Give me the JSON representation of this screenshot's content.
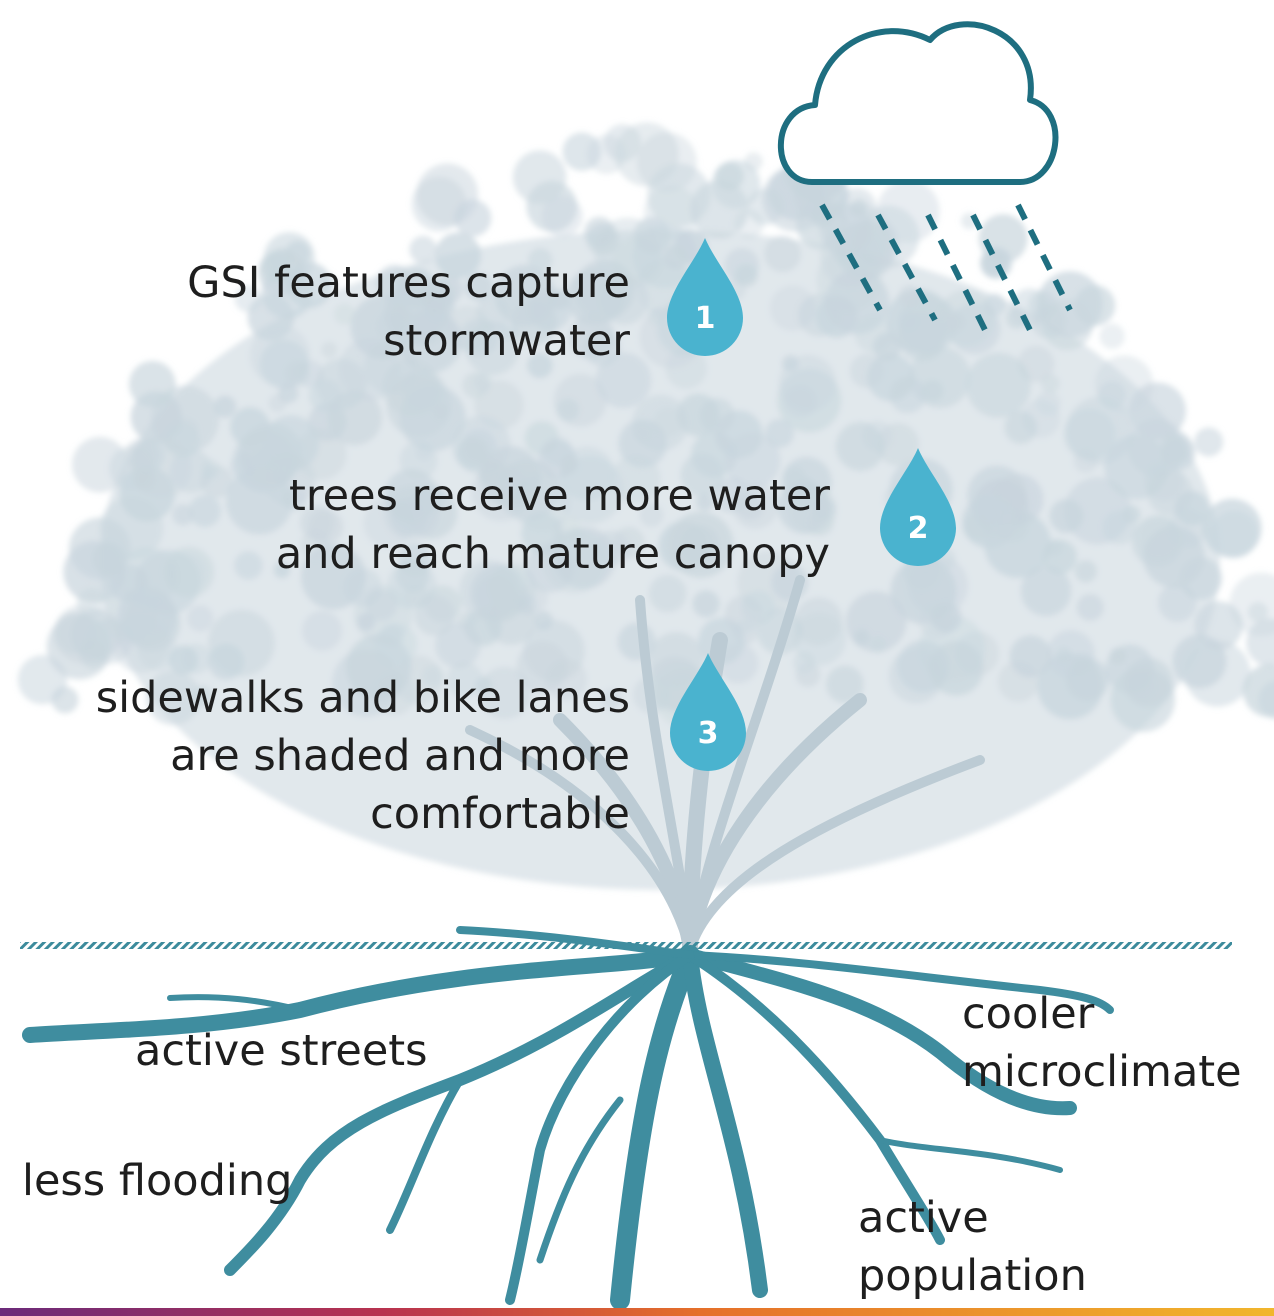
{
  "steps": [
    {
      "number": "1",
      "lines": [
        "GSI features capture",
        "stormwater"
      ]
    },
    {
      "number": "2",
      "lines": [
        "trees receive more water",
        "and reach mature canopy"
      ]
    },
    {
      "number": "3",
      "lines": [
        "sidewalks and bike lanes",
        "are shaded and more",
        "comfortable"
      ]
    }
  ],
  "outcomes": [
    {
      "lines": [
        "active streets"
      ]
    },
    {
      "lines": [
        "less flooding"
      ]
    },
    {
      "lines": [
        "cooler",
        "microclimate"
      ]
    },
    {
      "lines": [
        "active",
        "population"
      ]
    }
  ]
}
